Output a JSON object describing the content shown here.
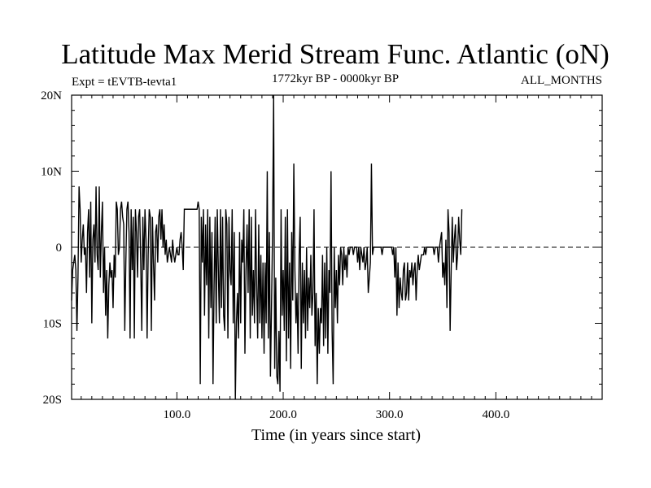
{
  "chart_data": {
    "type": "line",
    "title": "Latitude Max Merid Stream Func. Atlantic (oN)",
    "subtitle_left": "Expt = tEVTB-tevta1",
    "subtitle_center": "1772kyr BP - 0000kyr BP",
    "subtitle_right": "ALL_MONTHS",
    "xlabel": "Time (in years since start)",
    "ylabel": "",
    "xlim": [
      1,
      500
    ],
    "ylim": [
      -20,
      20
    ],
    "x_ticks": [
      {
        "value": 100,
        "label": "100.0"
      },
      {
        "value": 200,
        "label": "200.0"
      },
      {
        "value": 300,
        "label": "300.0"
      },
      {
        "value": 400,
        "label": "400.0"
      }
    ],
    "y_ticks": [
      {
        "value": 20,
        "label": "20N"
      },
      {
        "value": 10,
        "label": "10N"
      },
      {
        "value": 0,
        "label": "0"
      },
      {
        "value": -10,
        "label": "10S"
      },
      {
        "value": -20,
        "label": "20S"
      }
    ],
    "zero_line": "dashed",
    "grid": false,
    "series": [
      {
        "color": "#000000",
        "x_start": 1,
        "x_step": 1,
        "values": [
          -7,
          -3,
          -2,
          -1,
          -3,
          -11,
          -4,
          8,
          5,
          -2,
          1,
          3,
          -1,
          0,
          -6,
          2,
          5,
          -4,
          6,
          -10,
          1,
          3,
          -2,
          8,
          -1,
          -3,
          8,
          -4,
          2,
          6,
          -6,
          0,
          -9,
          -3,
          -12,
          -5,
          -2,
          -4,
          -3,
          -8,
          -1,
          -4,
          6,
          5,
          -1,
          0,
          5,
          6,
          4,
          3,
          -11,
          -2,
          5,
          6,
          2,
          -12,
          5,
          -3,
          4,
          -12,
          5,
          2,
          -4,
          4,
          5,
          -2,
          -11,
          4,
          -3,
          5,
          1,
          -12,
          -1,
          5,
          4,
          -11,
          4,
          -2,
          -7,
          2,
          3,
          -2,
          4,
          5,
          1,
          5,
          0,
          3,
          -1,
          1,
          -2,
          -1,
          0,
          -1,
          -2,
          1,
          -1,
          -2,
          -1,
          0,
          -1,
          -1,
          1,
          2,
          0,
          -3,
          5,
          5,
          5,
          5,
          5,
          5,
          5,
          5,
          5,
          5,
          5,
          5,
          5,
          6,
          5,
          -18,
          4,
          -2,
          5,
          -9,
          3,
          -5,
          5,
          -12,
          4,
          -8,
          2,
          -18,
          -5,
          4,
          -10,
          5,
          -3,
          -10,
          5,
          -8,
          4,
          -9,
          -11,
          5,
          3,
          -12,
          4,
          -3,
          -5,
          5,
          -10,
          2,
          -20,
          -10,
          -6,
          -12,
          2,
          -10,
          1,
          -2,
          5,
          -14,
          -3,
          3,
          -6,
          5,
          -12,
          4,
          -9,
          -3,
          -10,
          5,
          -5,
          -12,
          3,
          -10,
          -1,
          -12,
          -2,
          -14,
          -2,
          -10,
          10,
          -12,
          2,
          -17,
          -8,
          2,
          20,
          -16,
          -4,
          -17,
          -18,
          -11,
          -19,
          5,
          -9,
          -3,
          -11,
          4,
          -15,
          5,
          -12,
          -2,
          -16,
          2,
          -7,
          11,
          -3,
          -10,
          -6,
          -14,
          -1,
          4,
          -16,
          -2,
          -10,
          -3,
          -12,
          0,
          -11,
          -4,
          -8,
          -1,
          -9,
          -6,
          5,
          -13,
          -6,
          -18,
          -8,
          -14,
          -8,
          -10,
          -1,
          -13,
          -2,
          -12,
          0,
          -14,
          -3,
          -6,
          10,
          -11,
          -18,
          0,
          -8,
          -3,
          -10,
          -1,
          -5,
          0,
          -1,
          -5,
          0,
          -3,
          -1,
          -4,
          0,
          -1,
          0,
          0,
          0,
          -1,
          0,
          0,
          0,
          -2,
          0,
          -3,
          0,
          -1,
          -2,
          0,
          -3,
          -2,
          0,
          -6,
          -4,
          -2,
          11,
          -1,
          0,
          0,
          0,
          0,
          0,
          0,
          0,
          0,
          -1,
          0,
          0,
          0,
          0,
          0,
          0,
          0,
          0,
          0,
          -1,
          0,
          -4,
          0,
          -9,
          -2,
          -8,
          -4,
          -6,
          -7,
          -3,
          -2,
          -7,
          -6,
          -2,
          -7,
          -3,
          -4,
          -2,
          -5,
          -3,
          -2,
          -7,
          -3,
          -1,
          -3,
          -2,
          -1,
          -1,
          -1,
          0,
          -1,
          0,
          0,
          0,
          0,
          0,
          0,
          0,
          -1,
          0,
          0,
          0,
          -2,
          0,
          1,
          2,
          -4,
          -2,
          -5,
          1,
          -8,
          5,
          2,
          -11,
          -3,
          4,
          -2,
          1,
          3,
          -3,
          -1,
          4,
          1,
          -1,
          5
        ]
      }
    ]
  }
}
